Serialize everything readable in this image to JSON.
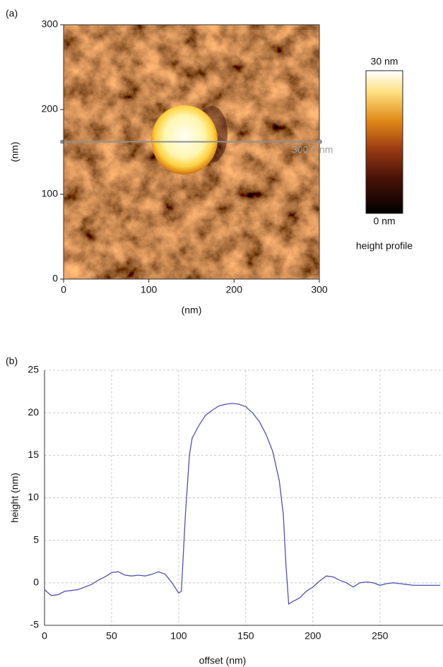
{
  "chart_data": [
    {
      "type": "image",
      "panel_label": "(a)",
      "xlabel": "(nm)",
      "ylabel": "(nm)",
      "xlim": [
        0,
        300
      ],
      "ylim": [
        0,
        300
      ],
      "xticks": [
        0,
        100,
        200,
        300
      ],
      "yticks": [
        0,
        100,
        200,
        300
      ],
      "scan_line": {
        "y": 162,
        "label": "300.0 nm"
      },
      "colorbar": {
        "clim": [
          0,
          30
        ],
        "ticks": [
          {
            "value": 0,
            "label": "0 nm"
          },
          {
            "value": 30,
            "label": "30 nm"
          }
        ],
        "label": "height profile"
      }
    },
    {
      "type": "line",
      "panel_label": "(b)",
      "xlabel": "offset (nm)",
      "ylabel": "height (nm)",
      "xlim": [
        0,
        297
      ],
      "ylim": [
        -5,
        25
      ],
      "xticks": [
        0,
        50,
        100,
        150,
        200,
        250
      ],
      "yticks": [
        -5,
        0,
        5,
        10,
        15,
        20,
        25
      ],
      "grid": true,
      "x": [
        0,
        5,
        10,
        15,
        20,
        25,
        30,
        35,
        40,
        45,
        50,
        55,
        60,
        65,
        70,
        75,
        80,
        85,
        90,
        95,
        100,
        102,
        105,
        108,
        110,
        115,
        120,
        125,
        130,
        135,
        140,
        145,
        150,
        155,
        160,
        165,
        170,
        175,
        178,
        180,
        182,
        185,
        190,
        195,
        200,
        205,
        210,
        215,
        220,
        225,
        230,
        235,
        240,
        245,
        250,
        255,
        260,
        265,
        270,
        275,
        280,
        285,
        290,
        295
      ],
      "series": [
        {
          "color": "#5050b0",
          "values": [
            -0.8,
            -1.5,
            -1.4,
            -1.0,
            -0.9,
            -0.8,
            -0.5,
            -0.2,
            0.3,
            0.7,
            1.2,
            1.3,
            0.9,
            0.8,
            0.9,
            0.8,
            1.0,
            1.3,
            1.0,
            0,
            -1.2,
            -1.0,
            8,
            15,
            17,
            18.5,
            19.7,
            20.3,
            20.8,
            21.0,
            21.1,
            21.0,
            20.7,
            20.0,
            19.0,
            17.5,
            15.5,
            12,
            8,
            2,
            -2.5,
            -2.2,
            -1.8,
            -1.0,
            -0.5,
            0.2,
            0.8,
            0.7,
            0.3,
            0,
            -0.5,
            0,
            0.1,
            0,
            -0.3,
            -0.1,
            0,
            -0.1,
            -0.2,
            -0.3,
            -0.3,
            -0.3,
            -0.3,
            -0.3
          ]
        }
      ]
    }
  ]
}
